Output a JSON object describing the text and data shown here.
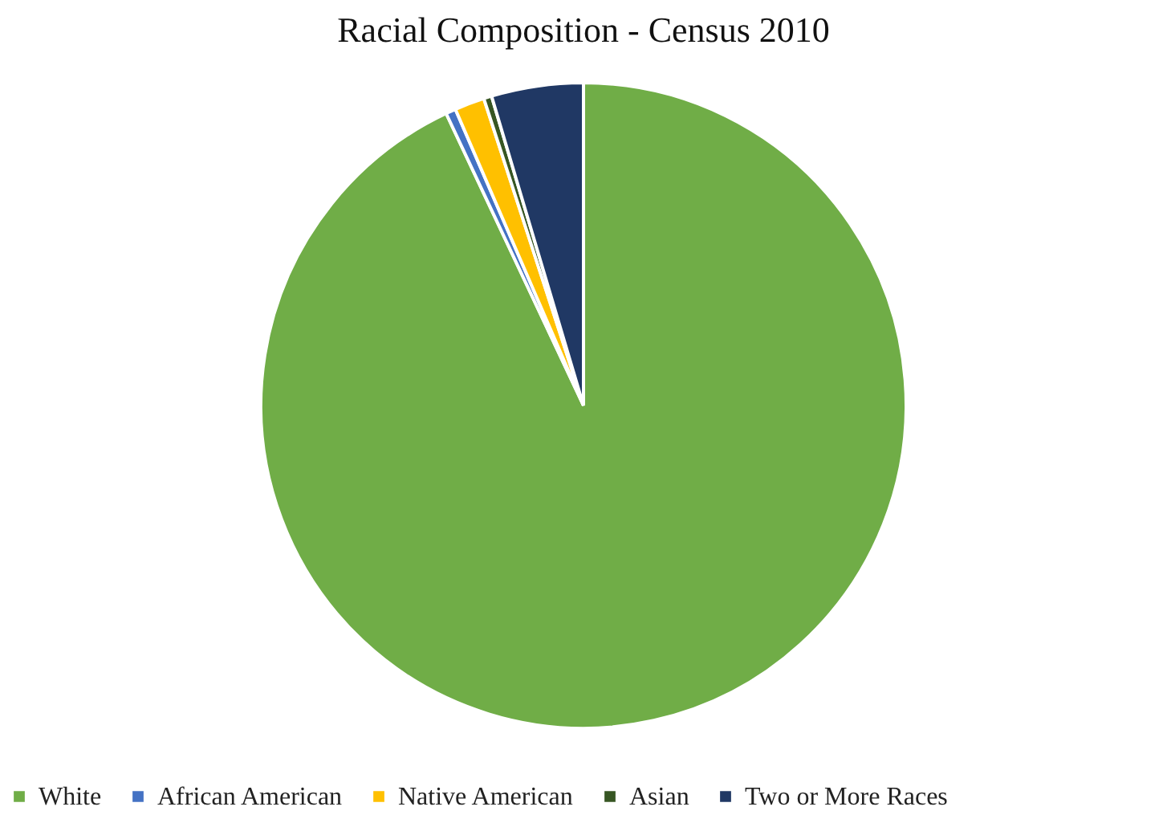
{
  "chart_data": {
    "type": "pie",
    "title": "Racial Composition - Census 2010",
    "categories": [
      "White",
      "African American",
      "Native American",
      "Asian",
      "Two or More Races"
    ],
    "values": [
      93.0,
      0.5,
      1.5,
      0.4,
      4.6
    ],
    "colors": [
      "#70ad47",
      "#4472c4",
      "#ffc000",
      "#375623",
      "#203864"
    ],
    "legend": "bottom"
  }
}
